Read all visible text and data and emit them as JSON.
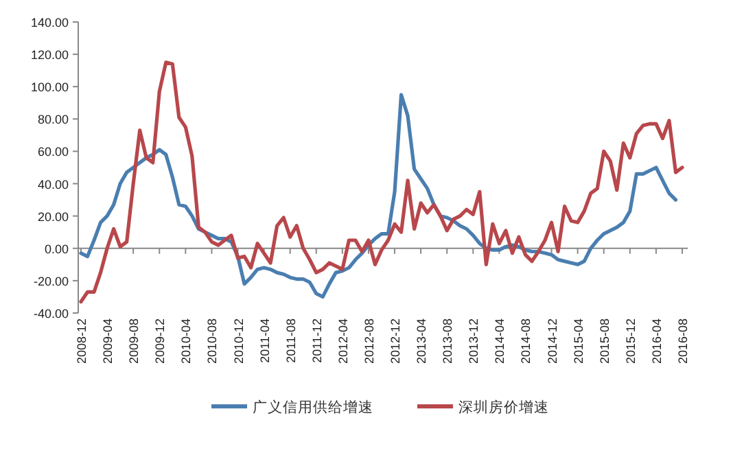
{
  "chart_data": {
    "type": "line",
    "categories": [
      "2008-12",
      null,
      null,
      null,
      "2009-04",
      null,
      null,
      null,
      "2009-08",
      null,
      null,
      null,
      "2009-12",
      null,
      null,
      null,
      "2010-04",
      null,
      null,
      null,
      "2010-08",
      null,
      null,
      null,
      "2010-12",
      null,
      null,
      null,
      "2011-04",
      null,
      null,
      null,
      "2011-08",
      null,
      null,
      null,
      "2011-12",
      null,
      null,
      null,
      "2012-04",
      null,
      null,
      null,
      "2012-08",
      null,
      null,
      null,
      "2012-12",
      null,
      null,
      null,
      "2013-04",
      null,
      null,
      null,
      "2013-08",
      null,
      null,
      null,
      "2013-12",
      null,
      null,
      null,
      "2014-04",
      null,
      null,
      null,
      "2014-08",
      null,
      null,
      null,
      "2014-12",
      null,
      null,
      null,
      "2015-04",
      null,
      null,
      null,
      "2015-08",
      null,
      null,
      null,
      "2015-12",
      null,
      null,
      null,
      "2016-04",
      null,
      null,
      null,
      "2016-08"
    ],
    "series": [
      {
        "name": "广义信用供给增速",
        "color": "#4a7eb0",
        "values": [
          -3,
          -5,
          5,
          16,
          20,
          27,
          40,
          47,
          50,
          53,
          56,
          58,
          61,
          58,
          44,
          27,
          26,
          20,
          12,
          10,
          8,
          6,
          6,
          4,
          -5,
          -22,
          -18,
          -13,
          -12,
          -13,
          -15,
          -16,
          -18,
          -19,
          -19,
          -21,
          -28,
          -30,
          -22,
          -15,
          -14,
          -12,
          -7,
          -3,
          2,
          6,
          9,
          9,
          35,
          95,
          82,
          49,
          43,
          37,
          27,
          20,
          19,
          17,
          14,
          12,
          8,
          3,
          0,
          -1,
          -1,
          1,
          2,
          1,
          -1,
          -2,
          -2,
          -3,
          -4,
          -7,
          -8,
          -9,
          -10,
          -8,
          0,
          5,
          9,
          11,
          13,
          16,
          23,
          46,
          46,
          48,
          50,
          42,
          34,
          30,
          null
        ]
      },
      {
        "name": "深圳房价增速",
        "color": "#b8474b",
        "values": [
          -33,
          -27,
          -27,
          -15,
          0,
          12,
          1,
          4,
          40,
          73,
          56,
          53,
          97,
          115,
          114,
          81,
          75,
          57,
          13,
          10,
          4,
          2,
          5,
          8,
          -6,
          -5,
          -12,
          3,
          -3,
          -9,
          14,
          19,
          7,
          14,
          0,
          -7,
          -15,
          -13,
          -9,
          -11,
          -13,
          5,
          5,
          -2,
          5,
          -10,
          -1,
          5,
          15,
          10,
          42,
          12,
          28,
          22,
          27,
          20,
          11,
          18,
          20,
          24,
          21,
          35,
          -10,
          15,
          3,
          11,
          -3,
          7,
          -4,
          -8,
          -2,
          5,
          16,
          -2,
          26,
          17,
          16,
          23,
          34,
          37,
          60,
          54,
          36,
          65,
          56,
          71,
          76,
          77,
          77,
          68,
          79,
          47,
          50
        ]
      }
    ],
    "ylim": [
      -40,
      140
    ],
    "yticks": [
      {
        "value": -40,
        "label": "-40.00"
      },
      {
        "value": -20,
        "label": "-20.00"
      },
      {
        "value": 0,
        "label": "0.00"
      },
      {
        "value": 20,
        "label": "20.00"
      },
      {
        "value": 40,
        "label": "40.00"
      },
      {
        "value": 60,
        "label": "60.00"
      },
      {
        "value": 80,
        "label": "80.00"
      },
      {
        "value": 100,
        "label": "100.00"
      },
      {
        "value": 120,
        "label": "120.00"
      },
      {
        "value": 140,
        "label": "140.00"
      }
    ],
    "legend": "bottom"
  }
}
